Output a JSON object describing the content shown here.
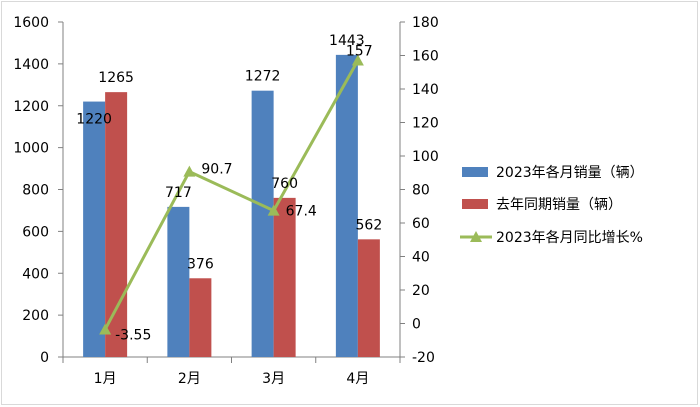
{
  "chart_data": {
    "type": "bar",
    "categories": [
      "1月",
      "2月",
      "3月",
      "4月"
    ],
    "series": [
      {
        "name": "2023年各月销量（辆）",
        "kind": "bar",
        "axis": "left",
        "color": "#4F81BD",
        "values": [
          1220,
          717,
          1272,
          1443
        ]
      },
      {
        "name": "去年同期销量（辆）",
        "kind": "bar",
        "axis": "left",
        "color": "#C0504D",
        "values": [
          1265,
          376,
          760,
          562
        ]
      },
      {
        "name": "2023年各月同比增长%",
        "kind": "line",
        "axis": "right",
        "color": "#9BBB59",
        "marker": "triangle",
        "values": [
          -3.55,
          90.7,
          67.4,
          157
        ]
      }
    ],
    "data_labels": {
      "bar_2023": [
        "1220",
        "717",
        "1272",
        "1443"
      ],
      "bar_last_year": [
        "1265",
        "376",
        "760",
        "562"
      ],
      "growth": [
        "-3.55",
        "90.7",
        "67.4",
        "157"
      ]
    },
    "ylim_left": [
      0,
      1600
    ],
    "yticks_left": [
      "0",
      "200",
      "400",
      "600",
      "800",
      "1000",
      "1200",
      "1400",
      "1600"
    ],
    "ylim_right": [
      -20,
      180
    ],
    "yticks_right": [
      "-20",
      "0",
      "20",
      "40",
      "60",
      "80",
      "100",
      "120",
      "140",
      "160",
      "180"
    ],
    "grid": false,
    "legend_position": "right",
    "title": "",
    "xlabel": "",
    "ylabel": ""
  }
}
